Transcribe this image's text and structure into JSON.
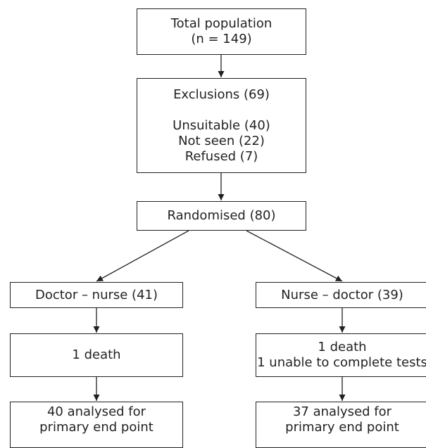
{
  "boxes": {
    "total": {
      "line1": "Total population",
      "line2": "(n = 149)"
    },
    "exclusions": {
      "heading": "Exclusions (69)",
      "items": [
        "Unsuitable (40)",
        "Not seen (22)",
        "Refused (7)"
      ]
    },
    "randomised": {
      "label": "Randomised (80)"
    },
    "doctor_nurse": {
      "label": "Doctor – nurse (41)"
    },
    "nurse_doctor": {
      "label": "Nurse – doctor (39)"
    },
    "left_events": {
      "line1": "1 death"
    },
    "right_events": {
      "line1": "1 death",
      "line2": "1 unable to complete tests"
    },
    "left_analysed": {
      "line1": "40 analysed for",
      "line2": "primary end point"
    },
    "right_analysed": {
      "line1": "37 analysed for",
      "line2": "primary end point"
    }
  },
  "colors": {
    "line": "#231f20",
    "background": "#ffffff"
  }
}
